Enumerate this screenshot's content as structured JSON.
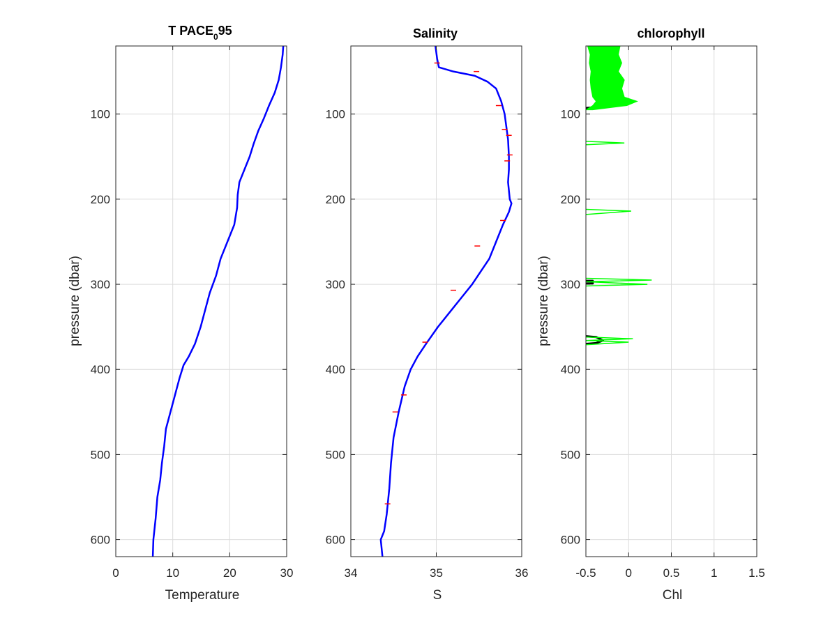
{
  "colors": {
    "blue": "#0000ff",
    "red": "#ff0000",
    "green": "#00ff00",
    "black": "#000000",
    "grid": "#dcdcdc",
    "axis": "#262626"
  },
  "chart_data": [
    {
      "type": "line",
      "title": "T PACE",
      "title_sub": "0",
      "title_suffix": "95",
      "xlabel": "Temperature",
      "ylabel": "pressure (dbar)",
      "xlim": [
        0,
        30
      ],
      "ylim": [
        20,
        620
      ],
      "y_reversed": true,
      "grid": true,
      "xticks": [
        "0",
        "10",
        "20",
        "30"
      ],
      "xtick_values": [
        0,
        10,
        20,
        30
      ],
      "yticks": [
        "100",
        "200",
        "300",
        "400",
        "500",
        "600"
      ],
      "ytick_values": [
        100,
        200,
        300,
        400,
        500,
        600
      ],
      "series": [
        {
          "color": "#0000ff",
          "x": [
            29.4,
            29.3,
            29.0,
            28.6,
            27.9,
            26.9,
            26.0,
            25.0,
            24.2,
            23.5,
            22.6,
            21.7,
            21.4,
            21.3,
            20.8,
            19.6,
            18.4,
            17.6,
            16.5,
            15.7,
            14.9,
            13.9,
            12.8,
            11.9,
            11.2,
            10.4,
            9.6,
            8.8,
            8.5,
            8.1,
            7.8,
            7.3,
            7.0,
            6.6,
            6.5
          ],
          "y": [
            20,
            30,
            45,
            60,
            75,
            90,
            105,
            120,
            135,
            150,
            165,
            180,
            195,
            210,
            230,
            250,
            270,
            290,
            310,
            330,
            350,
            370,
            385,
            395,
            410,
            430,
            450,
            470,
            490,
            510,
            530,
            550,
            575,
            600,
            620
          ]
        }
      ]
    },
    {
      "type": "line",
      "title": "Salinity",
      "xlabel": "S",
      "ylabel": "",
      "xlim": [
        34,
        36
      ],
      "ylim": [
        20,
        620
      ],
      "y_reversed": true,
      "grid": true,
      "xticks": [
        "34",
        "35",
        "36"
      ],
      "xtick_values": [
        34,
        35,
        36
      ],
      "yticks": [
        "100",
        "200",
        "300",
        "400",
        "500",
        "600"
      ],
      "ytick_values": [
        100,
        200,
        300,
        400,
        500,
        600
      ],
      "series": [
        {
          "color": "#0000ff",
          "x": [
            34.99,
            35.01,
            35.03,
            35.2,
            35.45,
            35.6,
            35.7,
            35.76,
            35.8,
            35.82,
            35.84,
            35.85,
            35.85,
            35.84,
            35.85,
            35.86,
            35.88,
            35.85,
            35.78,
            35.7,
            35.62,
            35.52,
            35.42,
            35.3,
            35.18,
            35.02,
            34.88,
            34.78,
            34.7,
            34.63,
            34.56,
            34.5,
            34.47,
            34.45,
            34.42,
            34.39,
            34.35,
            34.37
          ],
          "y": [
            20,
            35,
            45,
            50,
            55,
            62,
            70,
            85,
            100,
            115,
            130,
            150,
            165,
            180,
            190,
            200,
            205,
            215,
            230,
            250,
            270,
            285,
            300,
            315,
            330,
            350,
            370,
            385,
            400,
            420,
            450,
            480,
            510,
            540,
            570,
            590,
            600,
            620
          ]
        },
        {
          "color": "#ff0000",
          "x": [
            35.01,
            35.47,
            35.73,
            35.8,
            35.85,
            35.83,
            35.86,
            35.78,
            35.48,
            35.2,
            34.87,
            34.62,
            34.52,
            34.43
          ],
          "y": [
            40,
            50,
            90,
            118,
            125,
            155,
            148,
            225,
            255,
            307,
            368,
            430,
            450,
            558
          ]
        }
      ]
    },
    {
      "type": "line",
      "title": "chlorophyll",
      "xlabel": "Chl",
      "ylabel": "pressure (dbar)",
      "xlim": [
        -0.5,
        1.5
      ],
      "ylim": [
        20,
        620
      ],
      "y_reversed": true,
      "grid": true,
      "xticks": [
        "-0.5",
        "0",
        "0.5",
        "1",
        "1.5"
      ],
      "xtick_values": [
        -0.5,
        0,
        0.5,
        1,
        1.5
      ],
      "yticks": [
        "100",
        "200",
        "300",
        "400",
        "500",
        "600"
      ],
      "ytick_values": [
        100,
        200,
        300,
        400,
        500,
        600
      ],
      "series": [
        {
          "color": "#000000",
          "role": "smoothed",
          "segments": [
            {
              "x": [
                -0.28,
                -0.28,
                -0.27,
                -0.26,
                -0.25,
                -0.24,
                -0.22,
                -0.18,
                -0.1,
                -0.15,
                -0.3,
                -0.5
              ],
              "y": [
                20,
                30,
                40,
                50,
                60,
                70,
                75,
                78,
                82,
                87,
                91,
                93
              ]
            },
            {
              "x": [
                -0.5,
                -0.42,
                -0.42,
                -0.5
              ],
              "y": [
                296,
                296,
                299,
                299
              ]
            },
            {
              "x": [
                -0.5,
                -0.38,
                -0.3,
                -0.38,
                -0.5
              ],
              "y": [
                361,
                362,
                366,
                369,
                370
              ]
            }
          ]
        },
        {
          "color": "#00ff00",
          "role": "raw",
          "band": {
            "y": [
              20,
              30,
              40,
              50,
              60,
              70,
              80,
              85,
              90,
              95
            ],
            "x_min": [
              -0.48,
              -0.45,
              -0.46,
              -0.44,
              -0.45,
              -0.44,
              -0.42,
              -0.38,
              -0.42,
              -0.5
            ],
            "x_max": [
              -0.1,
              -0.12,
              -0.08,
              -0.12,
              -0.05,
              -0.08,
              -0.05,
              0.1,
              -0.02,
              -0.42
            ]
          },
          "spikes": [
            {
              "x": [
                -0.5,
                -0.05,
                -0.5
              ],
              "y": [
                132,
                134,
                136
              ]
            },
            {
              "x": [
                -0.5,
                0.03,
                -0.5
              ],
              "y": [
                212,
                214,
                218
              ]
            },
            {
              "x": [
                -0.5,
                0.27,
                -0.5,
                0.22,
                -0.5
              ],
              "y": [
                293,
                295,
                297,
                300,
                302
              ]
            },
            {
              "x": [
                -0.5,
                0.05,
                -0.5,
                0.0,
                -0.5
              ],
              "y": [
                362,
                364,
                366,
                368,
                371
              ]
            }
          ]
        }
      ]
    }
  ]
}
